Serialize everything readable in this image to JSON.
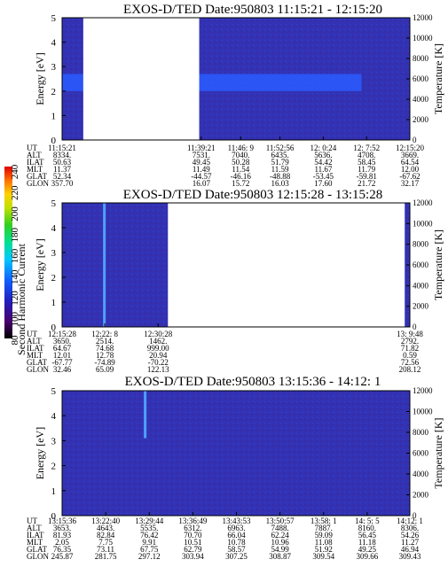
{
  "colors": {
    "background_fill": "#3030b0",
    "band": "#2a5cff",
    "spike": "#4fa0ff",
    "frame": "#000000",
    "gap": "#ffffff"
  },
  "colorbar": {
    "label": "Second Harmonic Current",
    "ticks": [
      "240",
      "220",
      "200",
      "180",
      "160",
      "140",
      "120",
      "100",
      "80"
    ],
    "stops": [
      "#000000",
      "#4a0070",
      "#2020c0",
      "#1060ff",
      "#00c8ff",
      "#00e090",
      "#30d020",
      "#c0e000",
      "#ffd000",
      "#ff7000",
      "#e00000"
    ]
  },
  "panels": [
    {
      "title": "EXOS-D/TED   Date:950803   11:15:21 - 12:15:20",
      "ylabel": "Energy [eV]",
      "y2label": "Temperature [K]",
      "yticks": [
        "0",
        "1",
        "2",
        "3",
        "4",
        "5"
      ],
      "y2ticks": [
        "0",
        "2000",
        "4000",
        "6000",
        "8000",
        "10000",
        "12000"
      ],
      "rows": [
        "UT",
        "ALT",
        "ILAT",
        "MLT",
        "GLAT",
        "GLON"
      ],
      "columns": [
        [
          "11:15:21",
          "8334.",
          "50.63",
          "11.37",
          "52.34",
          "357.70"
        ],
        [
          "11:39:21",
          "7531.",
          "49.45",
          "11.49",
          "-44.57",
          "16.07"
        ],
        [
          "11:46: 9",
          "7040.",
          "50.28",
          "11.54",
          "-46.16",
          "15.72"
        ],
        [
          "11:52:56",
          "6435.",
          "51.79",
          "11.59",
          "-48.88",
          "16.03"
        ],
        [
          "12: 0:24",
          "5636.",
          "54.42",
          "11.67",
          "-53.45",
          "17.60"
        ],
        [
          "12: 7:52",
          "4708.",
          "58.45",
          "11.79",
          "-59.81",
          "21.72"
        ],
        [
          "12:15:20",
          "3669.",
          "64.54",
          "12.00",
          "-67.62",
          "32.17"
        ]
      ]
    },
    {
      "title": "EXOS-D/TED   Date:950803   12:15:28 - 13:15:28",
      "ylabel": "Energy [eV]",
      "y2label": "Temperature [K]",
      "yticks": [
        "0",
        "1",
        "2",
        "3",
        "4",
        "5"
      ],
      "y2ticks": [
        "0",
        "2000",
        "4000",
        "6000",
        "8000",
        "10000",
        "12000"
      ],
      "rows": [
        "UT",
        "ALT",
        "ILAT",
        "MLT",
        "GLAT",
        "GLON"
      ],
      "columns": [
        [
          "12:15:28",
          "3650.",
          "64.67",
          "12.01",
          "-67.77",
          "32.46"
        ],
        [
          "12:22: 8",
          "2514.",
          "74.68",
          "12.78",
          "-74.89",
          "65.09"
        ],
        [
          "12:30:28",
          "1462.",
          "999.00",
          "20.94",
          "-70.22",
          "122.13"
        ],
        [
          "13: 9:48",
          "2792.",
          "71.82",
          "0.59",
          "72.56",
          "208.12"
        ]
      ]
    },
    {
      "title": "EXOS-D/TED   Date:950803   13:15:36 - 14:12: 1",
      "ylabel": "Energy [eV]",
      "y2label": "Temperature [K]",
      "yticks": [
        "0",
        "1",
        "2",
        "3",
        "4",
        "5"
      ],
      "y2ticks": [
        "0",
        "2000",
        "4000",
        "6000",
        "8000",
        "10000",
        "12000"
      ],
      "rows": [
        "UT",
        "ALT",
        "ILAT",
        "MLT",
        "GLAT",
        "GLON"
      ],
      "columns": [
        [
          "13:15:36",
          "3653.",
          "81.93",
          "2.05",
          "76.35",
          "245.87"
        ],
        [
          "13:22:40",
          "4643.",
          "82.84",
          "7.75",
          "73.11",
          "281.75"
        ],
        [
          "13:29:44",
          "5535.",
          "76.42",
          "9.91",
          "67.75",
          "297.12"
        ],
        [
          "13:36:49",
          "6312.",
          "70.70",
          "10.51",
          "62.79",
          "303.94"
        ],
        [
          "13:43:53",
          "6963.",
          "66.04",
          "10.78",
          "58.57",
          "307.25"
        ],
        [
          "13:50:57",
          "7488.",
          "62.24",
          "10.96",
          "54.99",
          "308.87"
        ],
        [
          "13:58: 1",
          "7887.",
          "59.09",
          "11.08",
          "51.92",
          "309.54"
        ],
        [
          "14: 5: 5",
          "8160.",
          "56.45",
          "11.18",
          "49.25",
          "309.66"
        ],
        [
          "14:12: 1",
          "8306.",
          "54.26",
          "11.27",
          "46.94",
          "309.43"
        ]
      ]
    }
  ],
  "chart_data": [
    {
      "type": "heatmap",
      "title": "EXOS-D/TED   Date:950803   11:15:21 - 12:15:20",
      "ylabel": "Energy [eV]",
      "y2label": "Temperature [K]",
      "x": [
        "11:15:21",
        "11:39:21",
        "11:46: 9",
        "11:52:56",
        "12: 0:24",
        "12: 7:52",
        "12:15:20"
      ],
      "ylim": [
        0,
        5
      ],
      "y2lim": [
        0,
        12000
      ],
      "data_gaps": [
        [
          "11:19",
          "11:39"
        ]
      ],
      "features": [
        {
          "type": "enhanced band",
          "energy_eV": [
            2.0,
            2.7
          ],
          "from": "11:15:21",
          "to": "12:07"
        }
      ]
    },
    {
      "type": "heatmap",
      "title": "EXOS-D/TED   Date:950803   12:15:28 - 13:15:28",
      "ylabel": "Energy [eV]",
      "y2label": "Temperature [K]",
      "x": [
        "12:15:28",
        "12:22: 8",
        "12:30:28",
        "13: 9:48"
      ],
      "ylim": [
        0,
        5
      ],
      "y2lim": [
        0,
        12000
      ],
      "data_gaps": [
        [
          "12:32",
          "13:09"
        ]
      ],
      "features": [
        {
          "type": "vertical spike",
          "at": "12:22",
          "energy_eV": [
            0,
            5
          ]
        }
      ]
    },
    {
      "type": "heatmap",
      "title": "EXOS-D/TED   Date:950803   13:15:36 - 14:12: 1",
      "ylabel": "Energy [eV]",
      "y2label": "Temperature [K]",
      "x": [
        "13:15:36",
        "13:22:40",
        "13:29:44",
        "13:36:49",
        "13:43:53",
        "13:50:57",
        "13:58: 1",
        "14: 5: 5",
        "14:12: 1"
      ],
      "ylim": [
        0,
        5
      ],
      "y2lim": [
        0,
        12000
      ],
      "data_gaps": [],
      "features": [
        {
          "type": "vertical spike",
          "at": "13:29",
          "energy_eV": [
            3.1,
            5
          ]
        }
      ]
    }
  ]
}
